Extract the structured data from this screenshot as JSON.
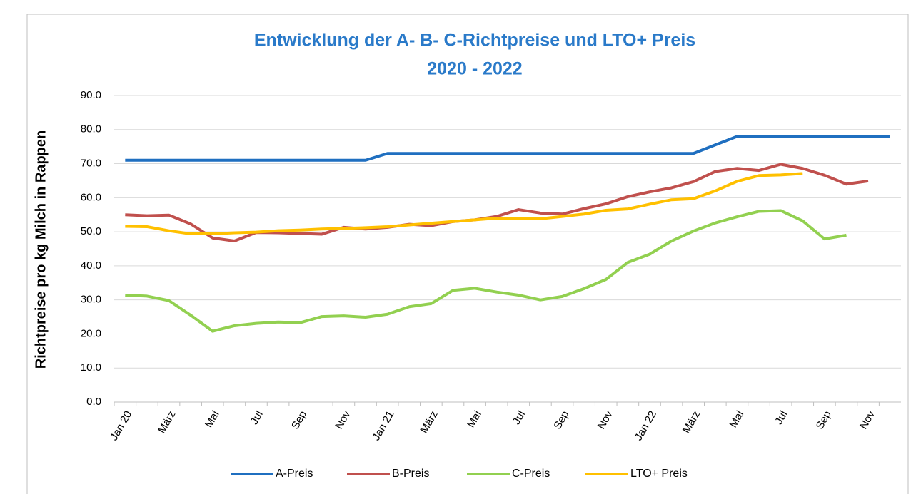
{
  "chart_data": {
    "type": "line",
    "title": "Entwicklung der A- B- C-Richtpreise und LTO+ Preis",
    "subtitle": "2020 - 2022",
    "y_label": "Richtpreise pro kg Milch in Rappen",
    "categories": [
      "Jan 20",
      null,
      "März",
      null,
      "Mai",
      null,
      "Jul",
      null,
      "Sep",
      null,
      "Nov",
      null,
      "Jan 21",
      null,
      "März",
      null,
      "Mai",
      null,
      "Jul",
      null,
      "Sep",
      null,
      "Nov",
      null,
      "Jan 22",
      null,
      "März",
      null,
      "Mai",
      null,
      "Jul",
      null,
      "Sep",
      null,
      "Nov",
      null
    ],
    "ylim": [
      0,
      90
    ],
    "yticks": [
      {
        "value": 0,
        "label": "0.0"
      },
      {
        "value": 10,
        "label": "10.0"
      },
      {
        "value": 20,
        "label": "20.0"
      },
      {
        "value": 30,
        "label": "30.0"
      },
      {
        "value": 40,
        "label": "40.0"
      },
      {
        "value": 50,
        "label": "50.0"
      },
      {
        "value": 60,
        "label": "60.0"
      },
      {
        "value": 70,
        "label": "70.0"
      },
      {
        "value": 80,
        "label": "80.0"
      },
      {
        "value": 90,
        "label": "90.0"
      }
    ],
    "grid": true,
    "legend": "bottom",
    "series": [
      {
        "name": "A-Preis",
        "color": "#1f6fc0",
        "values": [
          71,
          71,
          71,
          71,
          71,
          71,
          71,
          71,
          71,
          71,
          71,
          71,
          73,
          73,
          73,
          73,
          73,
          73,
          73,
          73,
          73,
          73,
          73,
          73,
          73,
          73,
          73,
          75.5,
          78,
          78,
          78,
          78,
          78,
          78,
          78,
          78
        ]
      },
      {
        "name": "B-Preis",
        "color": "#c0504d",
        "values": [
          55,
          54.7,
          54.9,
          52.3,
          48.2,
          47.3,
          49.8,
          49.7,
          49.5,
          49.3,
          51.3,
          50.8,
          51.3,
          52.2,
          51.8,
          53,
          53.5,
          54.5,
          56.5,
          55.5,
          55.2,
          56.8,
          58.2,
          60.3,
          61.7,
          62.9,
          64.7,
          67.7,
          68.6,
          68,
          69.8,
          68.6,
          66.6,
          64,
          64.9,
          null
        ]
      },
      {
        "name": "C-Preis",
        "color": "#92d050",
        "values": [
          31.4,
          31.1,
          29.8,
          25.5,
          20.8,
          22.4,
          23.1,
          23.5,
          23.3,
          25.1,
          25.3,
          24.9,
          25.8,
          28,
          28.9,
          32.8,
          33.4,
          32.3,
          31.4,
          30,
          31,
          33.3,
          36,
          41,
          43.4,
          47.3,
          50.2,
          52.6,
          54.4,
          56,
          56.2,
          53.2,
          47.9,
          49,
          null,
          null
        ]
      },
      {
        "name": "LTO+ Preis",
        "color": "#ffc000",
        "values": [
          51.6,
          51.5,
          50.3,
          49.4,
          49.4,
          49.7,
          49.9,
          50.3,
          50.5,
          50.8,
          51,
          51.2,
          51.5,
          52,
          52.5,
          53,
          53.5,
          54,
          53.8,
          53.8,
          54.5,
          55.2,
          56.3,
          56.7,
          58.1,
          59.4,
          59.7,
          62,
          64.8,
          66.5,
          66.7,
          67.1,
          null,
          null,
          null,
          null
        ]
      }
    ]
  }
}
